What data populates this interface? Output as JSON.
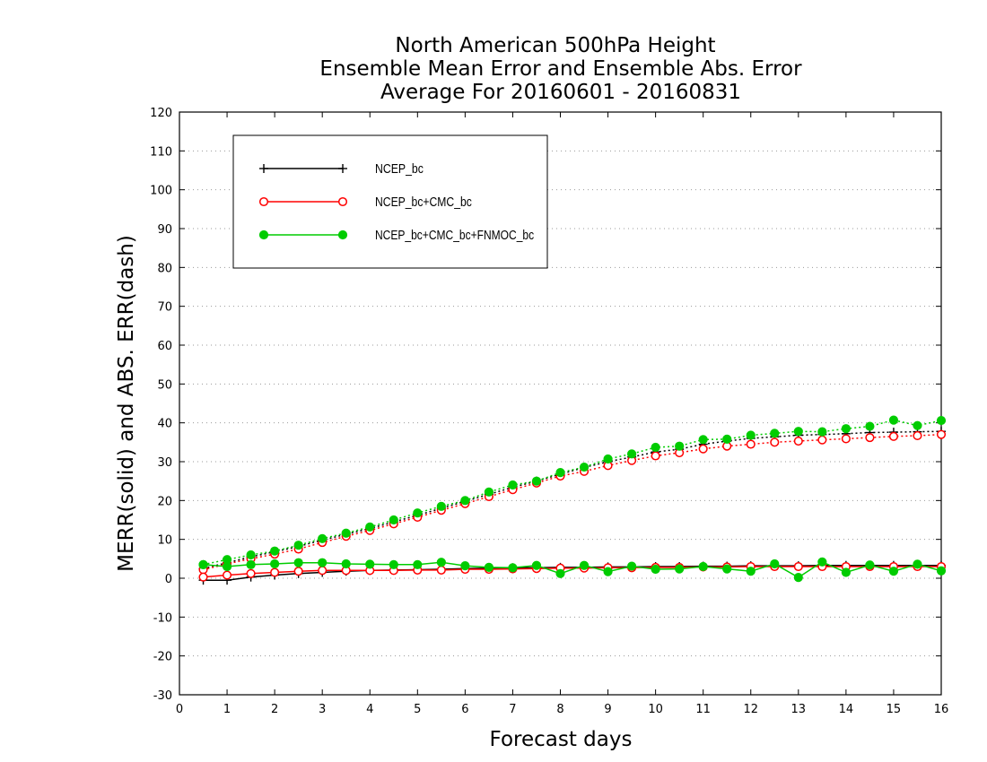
{
  "chart_data": {
    "type": "line",
    "title_lines": [
      "North American 500hPa Height",
      "Ensemble Mean Error and Ensemble Abs. Error",
      "Average For 20160601 - 20160831"
    ],
    "xlabel": "Forecast days",
    "ylabel": "MERR(solid) and ABS. ERR(dash)",
    "xlim": [
      0,
      16
    ],
    "ylim": [
      -30,
      120
    ],
    "x_ticks": [
      0,
      1,
      2,
      3,
      4,
      5,
      6,
      7,
      8,
      9,
      10,
      11,
      12,
      13,
      14,
      15,
      16
    ],
    "y_ticks": [
      -30,
      -20,
      -10,
      0,
      10,
      20,
      30,
      40,
      50,
      60,
      70,
      80,
      90,
      100,
      110,
      120
    ],
    "grid": "horizontal dotted",
    "legend_position": "top-left",
    "x": [
      0.5,
      1,
      1.5,
      2,
      2.5,
      3,
      3.5,
      4,
      4.5,
      5,
      5.5,
      6,
      6.5,
      7,
      7.5,
      8,
      8.5,
      9,
      9.5,
      10,
      10.5,
      11,
      11.5,
      12,
      12.5,
      13,
      13.5,
      14,
      14.5,
      15,
      15.5,
      16
    ],
    "series": [
      {
        "name": "NCEP_bc",
        "color": "#000000",
        "marker": "plus",
        "merr": [
          -0.5,
          -0.5,
          0.3,
          0.8,
          1.2,
          1.5,
          1.8,
          2.0,
          2.1,
          2.2,
          2.3,
          2.5,
          2.6,
          2.7,
          2.7,
          2.8,
          2.8,
          2.9,
          2.9,
          3.0,
          3.0,
          3.1,
          3.1,
          3.2,
          3.2,
          3.2,
          3.3,
          3.3,
          3.3,
          3.3,
          3.3,
          3.3
        ],
        "abs_err": [
          2.5,
          4.0,
          5.5,
          6.8,
          8.2,
          9.8,
          11.3,
          12.8,
          14.5,
          16.2,
          18.0,
          19.8,
          21.6,
          23.4,
          25.0,
          26.8,
          28.5,
          30.0,
          31.2,
          32.5,
          33.2,
          34.5,
          35.3,
          36.0,
          36.4,
          36.8,
          37.0,
          37.2,
          37.5,
          37.6,
          37.7,
          37.8
        ]
      },
      {
        "name": "NCEP_bc+CMC_bc",
        "color": "#ff0000",
        "marker": "open-circle",
        "merr": [
          0.3,
          0.8,
          1.2,
          1.5,
          1.8,
          2.0,
          2.0,
          2.0,
          2.0,
          2.1,
          2.1,
          2.3,
          2.3,
          2.4,
          2.5,
          2.6,
          2.6,
          2.7,
          2.7,
          2.8,
          2.8,
          2.9,
          2.9,
          3.0,
          3.0,
          3.0,
          3.0,
          3.0,
          3.0,
          3.0,
          3.0,
          3.0
        ],
        "abs_err": [
          2.2,
          3.7,
          5.0,
          6.2,
          7.5,
          9.2,
          10.8,
          12.3,
          14.0,
          15.7,
          17.5,
          19.2,
          21.0,
          22.8,
          24.5,
          26.3,
          27.5,
          29.0,
          30.3,
          31.5,
          32.3,
          33.3,
          34.0,
          34.5,
          35.0,
          35.3,
          35.6,
          35.9,
          36.2,
          36.5,
          36.7,
          37.0
        ]
      },
      {
        "name": "NCEP_bc+CMC_bc+FNMOC_bc",
        "color": "#00cc00",
        "marker": "filled-circle",
        "merr": [
          3.5,
          3.0,
          3.5,
          3.7,
          4.0,
          4.0,
          3.7,
          3.6,
          3.5,
          3.5,
          4.1,
          3.2,
          2.8,
          2.7,
          3.3,
          1.2,
          3.3,
          1.7,
          3.1,
          2.3,
          2.4,
          3.0,
          2.4,
          1.8,
          3.7,
          0.2,
          4.2,
          1.5,
          3.4,
          1.8,
          3.6,
          1.9
        ],
        "abs_err": [
          3.5,
          4.8,
          6.0,
          7.0,
          8.5,
          10.2,
          11.6,
          13.2,
          15.0,
          16.8,
          18.5,
          20.0,
          22.2,
          24.0,
          25.0,
          27.2,
          28.6,
          30.7,
          32.0,
          33.7,
          34.0,
          35.7,
          35.8,
          36.8,
          37.3,
          37.8,
          37.7,
          38.5,
          39.1,
          40.7,
          39.3,
          40.6
        ]
      }
    ]
  }
}
